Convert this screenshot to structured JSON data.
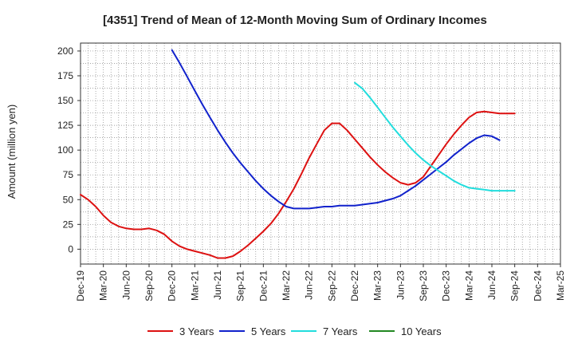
{
  "chart_data": {
    "type": "line",
    "title": "[4351]  Trend of Mean of 12-Month Moving Sum of Ordinary Incomes",
    "xlabel": "",
    "ylabel": "Amount (million yen)",
    "ylim": [
      -15,
      208
    ],
    "yticks": [
      0,
      25,
      50,
      75,
      100,
      125,
      150,
      175,
      200
    ],
    "grid": true,
    "legend_position": "bottom",
    "x_ticks": [
      "Dec-19",
      "Mar-20",
      "Jun-20",
      "Sep-20",
      "Dec-20",
      "Mar-21",
      "Jun-21",
      "Sep-21",
      "Dec-21",
      "Mar-22",
      "Jun-22",
      "Sep-22",
      "Dec-22",
      "Mar-23",
      "Jun-23",
      "Sep-23",
      "Dec-23",
      "Mar-24",
      "Jun-24",
      "Sep-24",
      "Dec-24",
      "Mar-25"
    ],
    "series": [
      {
        "name": "3 Years",
        "color": "#dd1111",
        "points": [
          [
            0,
            55
          ],
          [
            1,
            50
          ],
          [
            2,
            43
          ],
          [
            3,
            34
          ],
          [
            4,
            27
          ],
          [
            5,
            23
          ],
          [
            6,
            21
          ],
          [
            7,
            20
          ],
          [
            8,
            20
          ],
          [
            9,
            21
          ],
          [
            10,
            19
          ],
          [
            11,
            15
          ],
          [
            12,
            8
          ],
          [
            13,
            3
          ],
          [
            14,
            0
          ],
          [
            15,
            -2
          ],
          [
            16,
            -4
          ],
          [
            17,
            -6
          ],
          [
            18,
            -9
          ],
          [
            19,
            -9
          ],
          [
            20,
            -7
          ],
          [
            21,
            -2
          ],
          [
            22,
            4
          ],
          [
            23,
            11
          ],
          [
            24,
            18
          ],
          [
            25,
            26
          ],
          [
            26,
            36
          ],
          [
            27,
            48
          ],
          [
            28,
            61
          ],
          [
            29,
            76
          ],
          [
            30,
            92
          ],
          [
            31,
            106
          ],
          [
            32,
            120
          ],
          [
            33,
            127
          ],
          [
            34,
            127
          ],
          [
            35,
            120
          ],
          [
            36,
            111
          ],
          [
            37,
            102
          ],
          [
            38,
            93
          ],
          [
            39,
            85
          ],
          [
            40,
            78
          ],
          [
            41,
            72
          ],
          [
            42,
            67
          ],
          [
            43,
            65
          ],
          [
            44,
            67
          ],
          [
            45,
            73
          ],
          [
            46,
            84
          ],
          [
            47,
            95
          ],
          [
            48,
            106
          ],
          [
            49,
            116
          ],
          [
            50,
            125
          ],
          [
            51,
            133
          ],
          [
            52,
            138
          ],
          [
            53,
            139
          ],
          [
            54,
            138
          ],
          [
            55,
            137
          ],
          [
            56,
            137
          ],
          [
            57,
            137
          ]
        ]
      },
      {
        "name": "5 Years",
        "color": "#1122cc",
        "points": [
          [
            12,
            201
          ],
          [
            13,
            188
          ],
          [
            14,
            174
          ],
          [
            15,
            160
          ],
          [
            16,
            146
          ],
          [
            17,
            133
          ],
          [
            18,
            120
          ],
          [
            19,
            108
          ],
          [
            20,
            97
          ],
          [
            21,
            87
          ],
          [
            22,
            78
          ],
          [
            23,
            69
          ],
          [
            24,
            61
          ],
          [
            25,
            54
          ],
          [
            26,
            48
          ],
          [
            27,
            43
          ],
          [
            28,
            41
          ],
          [
            29,
            41
          ],
          [
            30,
            41
          ],
          [
            31,
            42
          ],
          [
            32,
            43
          ],
          [
            33,
            43
          ],
          [
            34,
            44
          ],
          [
            35,
            44
          ],
          [
            36,
            44
          ],
          [
            37,
            45
          ],
          [
            38,
            46
          ],
          [
            39,
            47
          ],
          [
            40,
            49
          ],
          [
            41,
            51
          ],
          [
            42,
            54
          ],
          [
            43,
            59
          ],
          [
            44,
            64
          ],
          [
            45,
            70
          ],
          [
            46,
            76
          ],
          [
            47,
            82
          ],
          [
            48,
            88
          ],
          [
            49,
            95
          ],
          [
            50,
            101
          ],
          [
            51,
            107
          ],
          [
            52,
            112
          ],
          [
            53,
            115
          ],
          [
            54,
            114
          ],
          [
            55,
            110
          ]
        ]
      },
      {
        "name": "7 Years",
        "color": "#22dddd",
        "points": [
          [
            36,
            168
          ],
          [
            37,
            162
          ],
          [
            38,
            153
          ],
          [
            39,
            143
          ],
          [
            40,
            133
          ],
          [
            41,
            123
          ],
          [
            42,
            114
          ],
          [
            43,
            105
          ],
          [
            44,
            97
          ],
          [
            45,
            90
          ],
          [
            46,
            84
          ],
          [
            47,
            79
          ],
          [
            48,
            74
          ],
          [
            49,
            69
          ],
          [
            50,
            65
          ],
          [
            51,
            62
          ],
          [
            52,
            61
          ],
          [
            53,
            60
          ],
          [
            54,
            59
          ],
          [
            55,
            59
          ],
          [
            56,
            59
          ],
          [
            57,
            59
          ]
        ]
      },
      {
        "name": "10 Years",
        "color": "#228822",
        "points": []
      }
    ]
  }
}
